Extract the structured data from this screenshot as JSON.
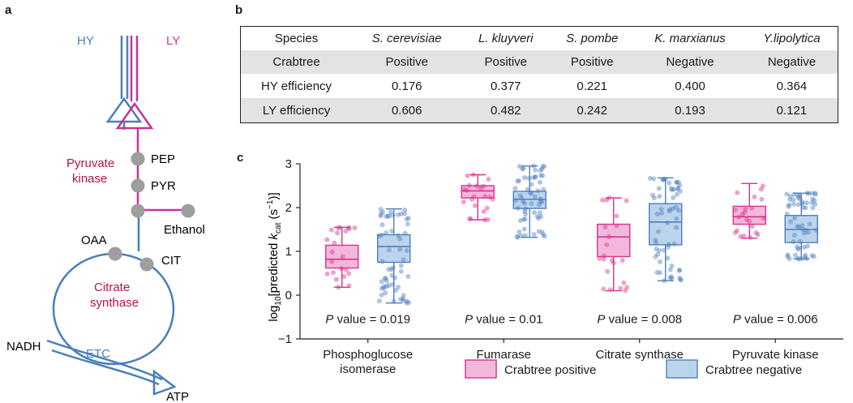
{
  "panels": {
    "a": "a",
    "b": "b",
    "c": "c"
  },
  "panel_a": {
    "HY": "HY",
    "LY": "LY",
    "pyruvate_kinase_1": "Pyruvate",
    "pyruvate_kinase_2": "kinase",
    "PEP": "PEP",
    "PYR": "PYR",
    "Ethanol": "Ethanol",
    "OAA": "OAA",
    "CIT": "CIT",
    "citrate_1": "Citrate",
    "citrate_2": "synthase",
    "NADH": "NADH",
    "ETC": "ETC",
    "ATP": "ATP",
    "colors": {
      "HY": "#4a7fb8",
      "LY": "#c9329a",
      "enzyme": "#b5124a",
      "node": "#9e9e9e"
    }
  },
  "table_b": {
    "header": [
      "Species",
      "S. cerevisiae",
      "L. kluyveri",
      "S. pombe",
      "K. marxianus",
      "Y.lipolytica"
    ],
    "rows": [
      [
        "Crabtree",
        "Positive",
        "Positive",
        "Positive",
        "Negative",
        "Negative"
      ],
      [
        "HY efficiency",
        "0.176",
        "0.377",
        "0.221",
        "0.400",
        "0.364"
      ],
      [
        "LY efficiency",
        "0.606",
        "0.482",
        "0.242",
        "0.193",
        "0.121"
      ]
    ]
  },
  "chart_data": {
    "type": "box",
    "ylabel_prefix": "log",
    "ylabel_sub": "10",
    "ylabel_mid": "[predicted ",
    "ylabel_k": "k",
    "ylabel_ksub": "cat",
    "ylabel_unit": " (s",
    "ylabel_sup": "−1",
    "ylabel_end": ")]",
    "ylim": [
      -1,
      3
    ],
    "yticks": [
      -1,
      0,
      1,
      2,
      3
    ],
    "categories": [
      {
        "lines": [
          "Phosphoglucose",
          "isomerase"
        ],
        "p_label": "P",
        "p_value": " value = 0.019"
      },
      {
        "lines": [
          "Fumarase"
        ],
        "p_label": "P",
        "p_value": " value = 0.01"
      },
      {
        "lines": [
          "Citrate synthase"
        ],
        "p_label": "P",
        "p_value": " value = 0.008"
      },
      {
        "lines": [
          "Pyruvate kinase"
        ],
        "p_label": "P",
        "p_value": " value = 0.006"
      }
    ],
    "series": [
      {
        "name": "Crabtree positive",
        "color": "#d6338f",
        "fill": "#f2b8dc",
        "boxes": [
          {
            "min": 0.18,
            "q1": 0.62,
            "median": 0.82,
            "q3": 1.14,
            "max": 1.55
          },
          {
            "min": 1.72,
            "q1": 2.22,
            "median": 2.38,
            "q3": 2.5,
            "max": 2.75
          },
          {
            "min": 0.1,
            "q1": 0.88,
            "median": 1.33,
            "q3": 1.62,
            "max": 2.22
          },
          {
            "min": 1.3,
            "q1": 1.62,
            "median": 1.79,
            "q3": 2.03,
            "max": 2.55
          }
        ]
      },
      {
        "name": "Crabtree negative",
        "color": "#4f7fbf",
        "fill": "#bcd3ec",
        "boxes": [
          {
            "min": -0.18,
            "q1": 0.75,
            "median": 1.11,
            "q3": 1.38,
            "max": 1.97
          },
          {
            "min": 1.32,
            "q1": 1.98,
            "median": 2.19,
            "q3": 2.37,
            "max": 2.95
          },
          {
            "min": 0.33,
            "q1": 1.15,
            "median": 1.67,
            "q3": 2.09,
            "max": 2.68
          },
          {
            "min": 0.83,
            "q1": 1.2,
            "median": 1.5,
            "q3": 1.82,
            "max": 2.33
          }
        ]
      }
    ]
  }
}
